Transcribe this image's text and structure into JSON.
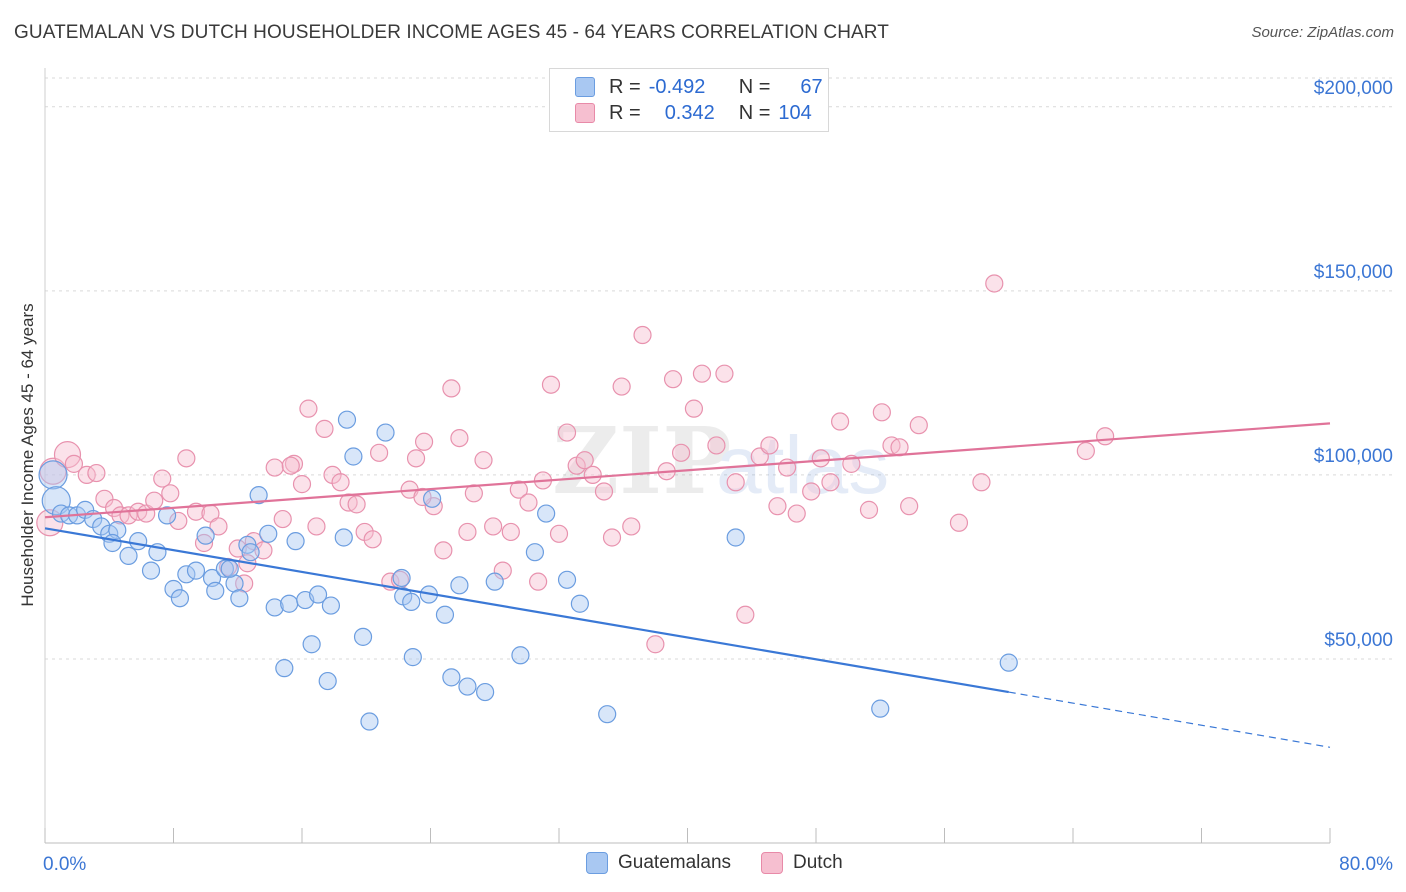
{
  "header": {
    "title": "GUATEMALAN VS DUTCH HOUSEHOLDER INCOME AGES 45 - 64 YEARS CORRELATION CHART",
    "source": "Source: ZipAtlas.com"
  },
  "legend": {
    "rows": [
      {
        "r_label": "R =",
        "r_value": "-0.492",
        "n_label": "N =",
        "n_value": "67",
        "color": "#a9c8f2",
        "border": "#6b9de0"
      },
      {
        "r_label": "R =",
        "r_value": "0.342",
        "n_label": "N =",
        "n_value": "104",
        "color": "#f6bfd0",
        "border": "#e88aa8"
      }
    ]
  },
  "bottom_legend": {
    "items": [
      {
        "label": "Guatemalans",
        "color": "#a9c8f2",
        "border": "#6b9de0"
      },
      {
        "label": "Dutch",
        "color": "#f6bfd0",
        "border": "#e88aa8"
      }
    ]
  },
  "watermark": {
    "part1": "ZIP",
    "part2": "atlas"
  },
  "chart_data": {
    "type": "scatter",
    "ylabel": "Householder Income Ages 45 - 64 years",
    "xlim": [
      0,
      80
    ],
    "ylim": [
      0,
      210000
    ],
    "x_ticks_labels": [
      "0.0%",
      "80.0%"
    ],
    "y_ticks": [
      {
        "value": 50000,
        "label": "$50,000"
      },
      {
        "value": 100000,
        "label": "$100,000"
      },
      {
        "value": 150000,
        "label": "$150,000"
      },
      {
        "value": 200000,
        "label": "$200,000"
      }
    ],
    "colors": {
      "guatemalans": "#3a78d6",
      "dutch": "#e07399"
    },
    "series": [
      {
        "name": "Guatemalans",
        "trend": {
          "x0": 0,
          "y0": 85500,
          "x1": 60,
          "y1": 41000,
          "dashed_to_x": 80,
          "dashed_to_y": 26000
        },
        "points": [
          [
            0.5,
            100000
          ],
          [
            0.7,
            93000
          ],
          [
            1,
            89500
          ],
          [
            1.5,
            89000
          ],
          [
            2,
            89000
          ],
          [
            2.5,
            90500
          ],
          [
            3,
            88000
          ],
          [
            3.5,
            86000
          ],
          [
            4,
            84000
          ],
          [
            4.5,
            85000
          ],
          [
            4.2,
            81500
          ],
          [
            5.2,
            78000
          ],
          [
            5.8,
            82000
          ],
          [
            6.6,
            74000
          ],
          [
            7,
            79000
          ],
          [
            7.6,
            89000
          ],
          [
            8,
            69000
          ],
          [
            8.4,
            66500
          ],
          [
            8.8,
            73000
          ],
          [
            9.4,
            74000
          ],
          [
            10,
            83500
          ],
          [
            10.4,
            72000
          ],
          [
            10.6,
            68500
          ],
          [
            11.2,
            74500
          ],
          [
            11.8,
            70500
          ],
          [
            12.1,
            66500
          ],
          [
            12.6,
            81000
          ],
          [
            12.8,
            79000
          ],
          [
            13.3,
            94500
          ],
          [
            13.9,
            84000
          ],
          [
            14.3,
            64000
          ],
          [
            14.9,
            47500
          ],
          [
            15.2,
            65000
          ],
          [
            15.6,
            82000
          ],
          [
            16.2,
            66000
          ],
          [
            16.6,
            54000
          ],
          [
            17,
            67500
          ],
          [
            17.6,
            44000
          ],
          [
            17.8,
            64500
          ],
          [
            18.6,
            83000
          ],
          [
            18.8,
            115000
          ],
          [
            19.2,
            105000
          ],
          [
            19.8,
            56000
          ],
          [
            20.2,
            33000
          ],
          [
            21.2,
            111500
          ],
          [
            22.2,
            72000
          ],
          [
            22.3,
            67000
          ],
          [
            22.8,
            65500
          ],
          [
            22.9,
            50500
          ],
          [
            23.9,
            67500
          ],
          [
            24.1,
            93500
          ],
          [
            24.9,
            62000
          ],
          [
            25.3,
            45000
          ],
          [
            25.8,
            70000
          ],
          [
            26.3,
            42500
          ],
          [
            27.4,
            41000
          ],
          [
            28,
            71000
          ],
          [
            29.6,
            51000
          ],
          [
            30.5,
            79000
          ],
          [
            31.2,
            89500
          ],
          [
            32.5,
            71500
          ],
          [
            33.3,
            65000
          ],
          [
            35,
            35000
          ],
          [
            43,
            83000
          ],
          [
            52,
            36500
          ],
          [
            60,
            49000
          ],
          [
            11.5,
            74500
          ]
        ]
      },
      {
        "name": "Dutch",
        "trend": {
          "x0": 0,
          "y0": 88500,
          "x1": 80,
          "y1": 114000
        },
        "points": [
          [
            0.3,
            87000
          ],
          [
            0.5,
            101000
          ],
          [
            1.4,
            105500
          ],
          [
            1.8,
            103000
          ],
          [
            2.6,
            100000
          ],
          [
            3.2,
            100500
          ],
          [
            3.7,
            93500
          ],
          [
            4.3,
            91000
          ],
          [
            4.7,
            89000
          ],
          [
            5.2,
            89000
          ],
          [
            5.8,
            90000
          ],
          [
            6.3,
            89500
          ],
          [
            6.8,
            93000
          ],
          [
            7.3,
            99000
          ],
          [
            7.8,
            95000
          ],
          [
            8.3,
            87500
          ],
          [
            8.8,
            104500
          ],
          [
            9.4,
            90000
          ],
          [
            9.9,
            81500
          ],
          [
            10.3,
            89500
          ],
          [
            10.8,
            86000
          ],
          [
            11.4,
            75000
          ],
          [
            12,
            80000
          ],
          [
            12.4,
            70500
          ],
          [
            13,
            82000
          ],
          [
            13.6,
            79500
          ],
          [
            14.3,
            102000
          ],
          [
            14.8,
            88000
          ],
          [
            15.5,
            103000
          ],
          [
            16,
            97500
          ],
          [
            16.4,
            118000
          ],
          [
            16.9,
            86000
          ],
          [
            17.4,
            112500
          ],
          [
            17.9,
            100000
          ],
          [
            18.4,
            98000
          ],
          [
            18.9,
            92500
          ],
          [
            19.4,
            92000
          ],
          [
            19.9,
            84500
          ],
          [
            20.4,
            82500
          ],
          [
            20.8,
            106000
          ],
          [
            21.5,
            71000
          ],
          [
            22.1,
            71500
          ],
          [
            22.7,
            96000
          ],
          [
            23.1,
            104500
          ],
          [
            23.6,
            109000
          ],
          [
            24.2,
            91500
          ],
          [
            24.8,
            79500
          ],
          [
            25.3,
            123500
          ],
          [
            25.8,
            110000
          ],
          [
            26.3,
            84500
          ],
          [
            26.7,
            95000
          ],
          [
            27.3,
            104000
          ],
          [
            27.9,
            86000
          ],
          [
            28.5,
            74000
          ],
          [
            29,
            84500
          ],
          [
            29.5,
            96000
          ],
          [
            30.1,
            92500
          ],
          [
            30.7,
            71000
          ],
          [
            31,
            98500
          ],
          [
            31.5,
            124500
          ],
          [
            32,
            84000
          ],
          [
            32.5,
            111500
          ],
          [
            33.1,
            102500
          ],
          [
            33.6,
            104000
          ],
          [
            34.1,
            100000
          ],
          [
            34.8,
            95500
          ],
          [
            35.3,
            83000
          ],
          [
            35.9,
            124000
          ],
          [
            36.5,
            86000
          ],
          [
            37.2,
            138000
          ],
          [
            38,
            54000
          ],
          [
            38.7,
            101000
          ],
          [
            39.1,
            126000
          ],
          [
            39.6,
            106000
          ],
          [
            40.4,
            118000
          ],
          [
            40.9,
            127500
          ],
          [
            41.8,
            108000
          ],
          [
            42.3,
            127500
          ],
          [
            43,
            98000
          ],
          [
            43.6,
            62000
          ],
          [
            44.5,
            105000
          ],
          [
            45.1,
            108000
          ],
          [
            45.6,
            91500
          ],
          [
            46.2,
            102000
          ],
          [
            46.8,
            89500
          ],
          [
            47.7,
            95500
          ],
          [
            48.3,
            104500
          ],
          [
            48.9,
            98000
          ],
          [
            49.5,
            114500
          ],
          [
            50.2,
            103000
          ],
          [
            51.3,
            90500
          ],
          [
            52.1,
            117000
          ],
          [
            52.7,
            108000
          ],
          [
            53.2,
            107500
          ],
          [
            53.8,
            91500
          ],
          [
            54.4,
            113500
          ],
          [
            56.9,
            87000
          ],
          [
            58.3,
            98000
          ],
          [
            59.1,
            152000
          ],
          [
            64.8,
            106500
          ],
          [
            66,
            110500
          ],
          [
            15.3,
            102500
          ],
          [
            23.5,
            94000
          ],
          [
            12.6,
            76000
          ]
        ]
      }
    ]
  }
}
